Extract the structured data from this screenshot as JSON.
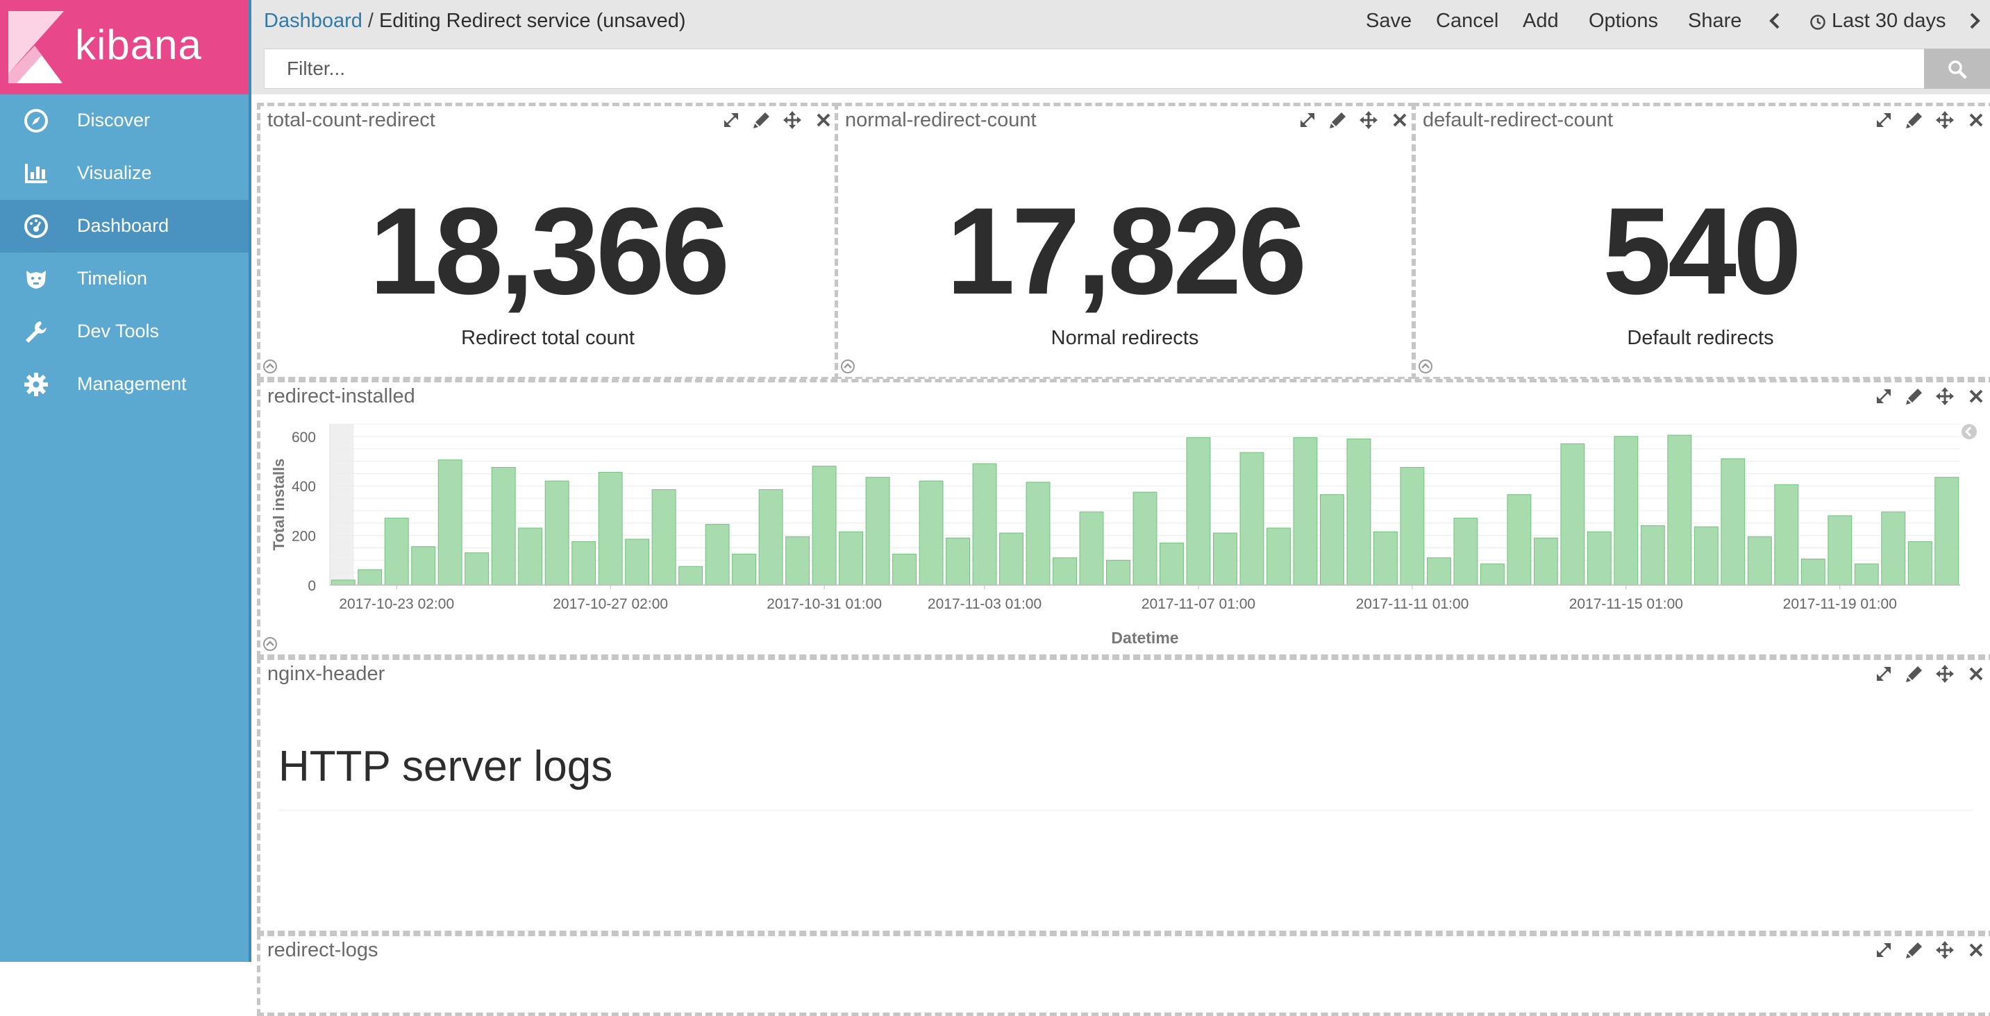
{
  "app": {
    "brand": "kibana",
    "colors": {
      "sidebar": "#5ba8d0",
      "logo_bg": "#e8488a",
      "bar_fill": "#a8dcae",
      "bar_stroke": "#6fc27c",
      "link": "#2f7aa9"
    }
  },
  "sidebar": {
    "items": [
      {
        "label": "Discover",
        "icon": "compass-icon",
        "active": false
      },
      {
        "label": "Visualize",
        "icon": "bar-chart-icon",
        "active": false
      },
      {
        "label": "Dashboard",
        "icon": "dashboard-icon",
        "active": true
      },
      {
        "label": "Timelion",
        "icon": "timelion-icon",
        "active": false
      },
      {
        "label": "Dev Tools",
        "icon": "wrench-icon",
        "active": false
      },
      {
        "label": "Management",
        "icon": "gear-icon",
        "active": false
      }
    ]
  },
  "header": {
    "breadcrumb_link": "Dashboard",
    "breadcrumb_sep": "/",
    "breadcrumb_current": "Editing Redirect service (unsaved)",
    "menu": {
      "save": "Save",
      "cancel": "Cancel",
      "add": "Add",
      "options": "Options",
      "share": "Share"
    },
    "time_range": "Last 30 days"
  },
  "search": {
    "placeholder": "Filter..."
  },
  "panels": {
    "total": {
      "title": "total-count-redirect",
      "value": "18,366",
      "label": "Redirect total count"
    },
    "normal": {
      "title": "normal-redirect-count",
      "value": "17,826",
      "label": "Normal redirects"
    },
    "default": {
      "title": "default-redirect-count",
      "value": "540",
      "label": "Default redirects"
    },
    "installed": {
      "title": "redirect-installed"
    },
    "nginx": {
      "title": "nginx-header",
      "heading": "HTTP server logs"
    },
    "logs": {
      "title": "redirect-logs"
    }
  },
  "chart_data": {
    "type": "bar",
    "xlabel": "Datetime",
    "ylabel": "Total installs",
    "ylim": [
      0,
      650
    ],
    "yticks": [
      0,
      200,
      400,
      600
    ],
    "grid": true,
    "x_tick_labels": [
      "2017-10-23 02:00",
      "2017-10-27 02:00",
      "2017-10-31 01:00",
      "2017-11-03 01:00",
      "2017-11-07 01:00",
      "2017-11-11 01:00",
      "2017-11-15 01:00",
      "2017-11-19 01:00"
    ],
    "x_tick_bar_index": [
      2,
      10,
      18,
      24,
      32,
      40,
      48,
      56
    ],
    "values": [
      20,
      62,
      270,
      155,
      505,
      130,
      475,
      230,
      420,
      175,
      455,
      185,
      385,
      75,
      245,
      125,
      385,
      195,
      480,
      215,
      435,
      125,
      420,
      190,
      490,
      210,
      415,
      110,
      295,
      100,
      375,
      170,
      595,
      210,
      535,
      230,
      595,
      365,
      590,
      215,
      475,
      110,
      270,
      85,
      365,
      190,
      570,
      215,
      600,
      240,
      605,
      235,
      510,
      195,
      405,
      105,
      280,
      85,
      295,
      175,
      435
    ]
  }
}
